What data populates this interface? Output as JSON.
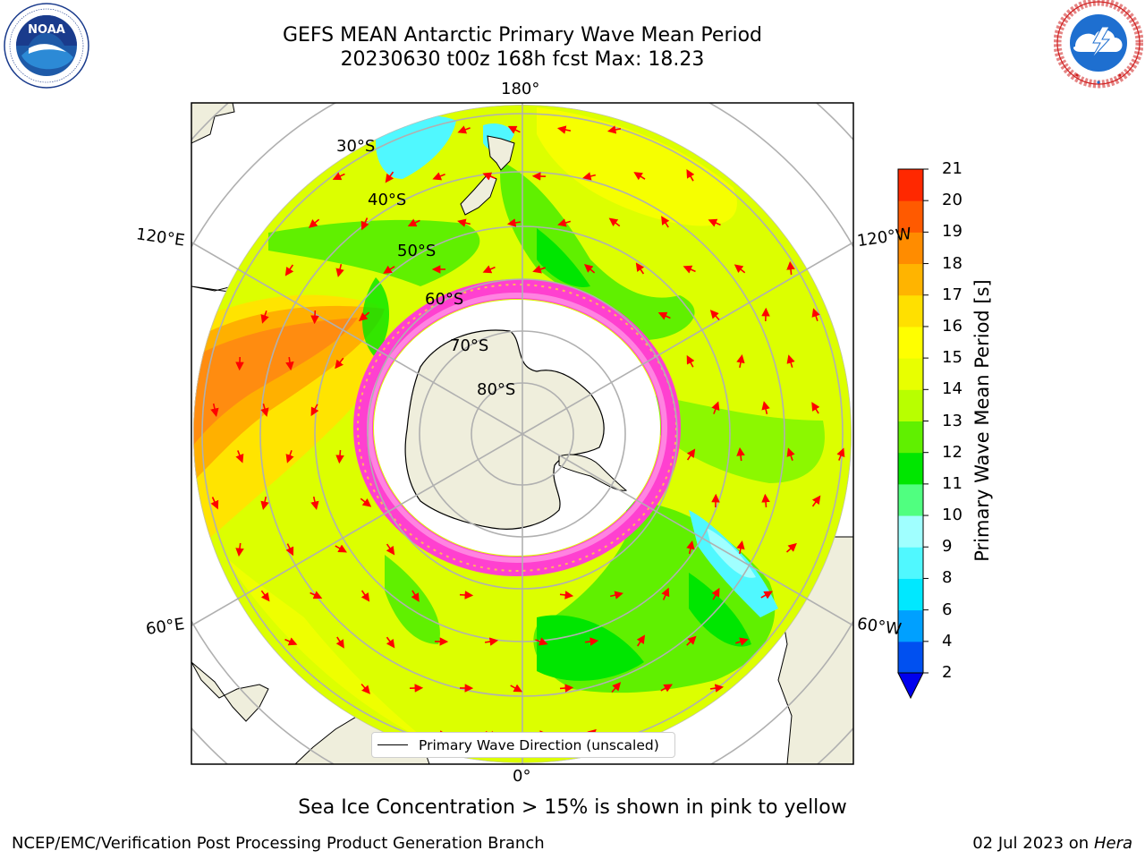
{
  "title": {
    "line1": "GEFS MEAN Antarctic Primary Wave Mean Period",
    "line2": "20230630 t00z 168h fcst   Max: 18.23"
  },
  "logos": {
    "left": {
      "text": "NOAA",
      "ring_text": "NATIONAL OCEANIC AND ATMOSPHERIC ADMINISTRATION · U.S. DEPARTMENT OF COMMERCE"
    },
    "right": {
      "ring_text": "NATIONAL WEATHER SERVICE"
    }
  },
  "map": {
    "longitude_labels": [
      "180°",
      "120°E",
      "120°W",
      "60°E",
      "60°W",
      "0°"
    ],
    "latitude_labels": [
      "30°S",
      "40°S",
      "50°S",
      "60°S",
      "70°S",
      "80°S"
    ],
    "legend_text": "Primary Wave Direction (unscaled)"
  },
  "colorbar": {
    "title": "Primary Wave Mean Period [s]",
    "ticks": [
      "2",
      "4",
      "6",
      "8",
      "9",
      "10",
      "11",
      "12",
      "13",
      "14",
      "15",
      "16",
      "17",
      "18",
      "19",
      "20",
      "21"
    ],
    "colors": [
      "#0050f0",
      "#00a0ff",
      "#00e8ff",
      "#50f8ff",
      "#a0ffff",
      "#50ff80",
      "#00e600",
      "#60f000",
      "#b8ff00",
      "#e8ff00",
      "#ffff00",
      "#ffe000",
      "#ffb400",
      "#ff8c00",
      "#ff5a00",
      "#ff2800",
      "#ff0000"
    ],
    "under_color": "#0000ee"
  },
  "caption": "Sea Ice Concentration > 15% is shown in pink to yellow",
  "footer": {
    "left": "NCEP/EMC/Verification Post Processing Product Generation Branch",
    "date": "02 Jul 2023 on ",
    "machine": "Hera"
  }
}
